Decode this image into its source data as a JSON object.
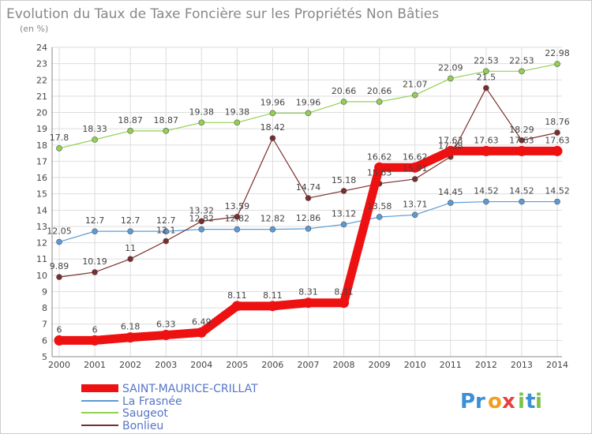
{
  "chart_data": {
    "type": "line",
    "title": "Evolution du Taux de Taxe Foncière sur les Propriétés Non Bâties",
    "subtitle": "(en %)",
    "x": [
      "2000",
      "2001",
      "2002",
      "2003",
      "2004",
      "2005",
      "2006",
      "2007",
      "2008",
      "2009",
      "2010",
      "2011",
      "2012",
      "2013",
      "2014"
    ],
    "ylim": [
      5,
      24
    ],
    "yticks": [
      5,
      6,
      7,
      8,
      9,
      10,
      11,
      12,
      13,
      14,
      15,
      16,
      17,
      18,
      19,
      20,
      21,
      22,
      23,
      24
    ],
    "grid": true,
    "legend_position": "bottom-left",
    "series": [
      {
        "name": "SAINT-MAURICE-CRILLAT",
        "color": "#ee1111",
        "values": [
          6,
          6,
          6.18,
          6.33,
          6.49,
          8.11,
          8.11,
          8.31,
          8.31,
          16.62,
          16.62,
          17.63,
          17.63,
          17.63,
          17.63
        ],
        "labels": [
          "6",
          "6",
          "6.18",
          "6.33",
          "6.49",
          "8.11",
          "8.11",
          "8.31",
          "8.31",
          "16.62",
          "16.62",
          "17.63",
          "17.63",
          "17.63",
          "17.63"
        ]
      },
      {
        "name": "La Frasnée",
        "color": "#5b9bd5",
        "values": [
          12.05,
          12.7,
          12.7,
          12.7,
          12.82,
          12.82,
          12.82,
          12.86,
          13.12,
          13.58,
          13.71,
          14.45,
          14.52,
          14.52,
          14.52
        ],
        "labels": [
          "12.05",
          "12.7",
          "12.7",
          "12.7",
          "12.82",
          "12.82",
          "12.82",
          "12.86",
          "13.12",
          "13.58",
          "13.71",
          "14.45",
          "14.52",
          "14.52",
          "14.52"
        ]
      },
      {
        "name": "Saugeot",
        "color": "#92d050",
        "values": [
          17.8,
          18.33,
          18.87,
          18.87,
          19.38,
          19.38,
          19.96,
          19.96,
          20.66,
          20.66,
          21.07,
          22.09,
          22.53,
          22.53,
          22.98
        ],
        "labels": [
          "17.8",
          "18.33",
          "18.87",
          "18.87",
          "19.38",
          "19.38",
          "19.96",
          "19.96",
          "20.66",
          "20.66",
          "21.07",
          "22.09",
          "22.53",
          "22.53",
          "22.98"
        ]
      },
      {
        "name": "Bonlieu",
        "color": "#7b2c2c",
        "values": [
          9.89,
          10.19,
          11,
          12.1,
          13.32,
          13.59,
          18.42,
          14.74,
          15.18,
          15.63,
          15.91,
          17.28,
          21.5,
          18.29,
          18.76
        ],
        "labels": [
          "9.89",
          "10.19",
          "11",
          "12.1",
          "13.32",
          "13.59",
          "18.42",
          "14.74",
          "15.18",
          "15.63",
          "15.91",
          "17.28",
          "21.5",
          "18.29",
          "18.76"
        ]
      }
    ]
  },
  "logo": {
    "letters": [
      "P",
      "r",
      "o",
      "x",
      "i",
      "t",
      "i"
    ],
    "colors": [
      "#3a8fd6",
      "#3a8fd6",
      "#f0a020",
      "#e84040",
      "#7cc242",
      "#3a8fd6",
      "#7cc242"
    ]
  }
}
